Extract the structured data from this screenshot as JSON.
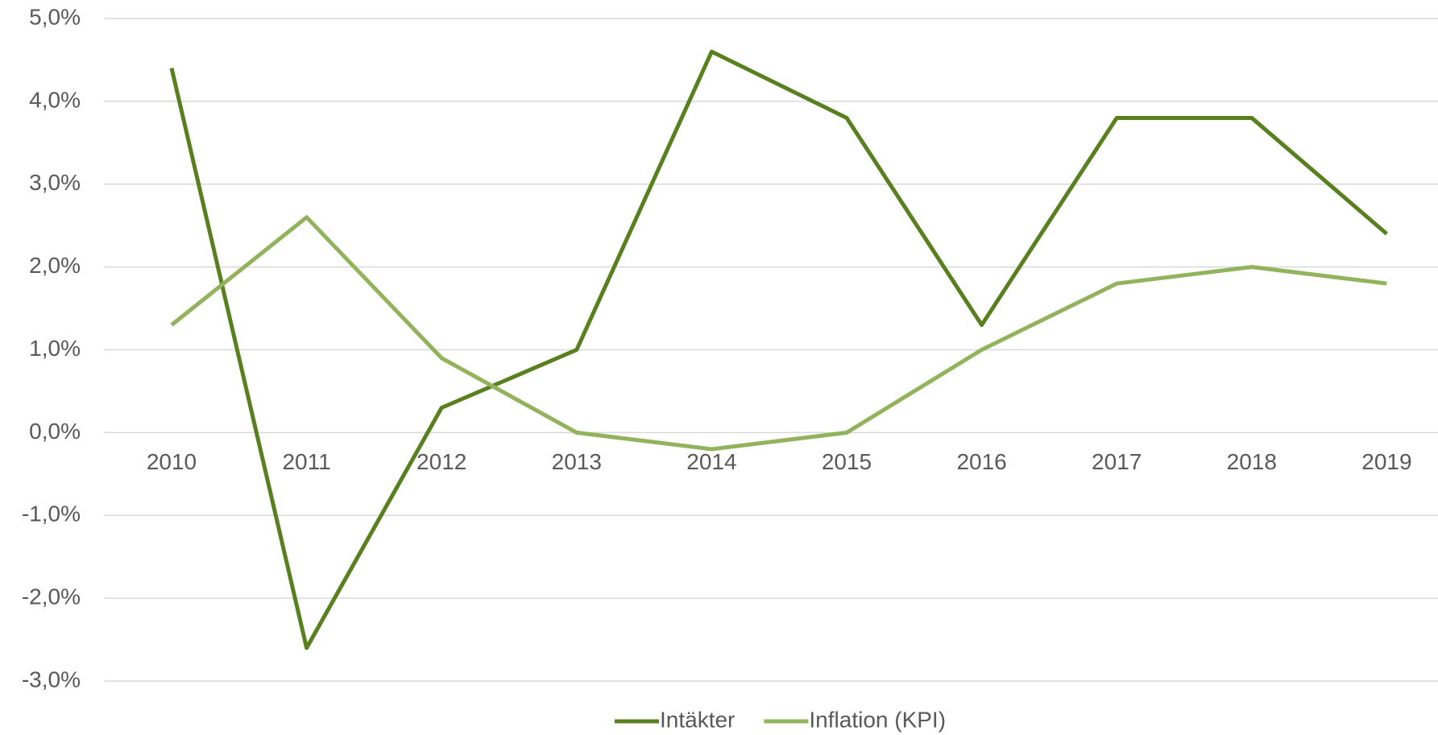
{
  "chart_data": {
    "type": "line",
    "categories": [
      "2010",
      "2011",
      "2012",
      "2013",
      "2014",
      "2015",
      "2016",
      "2017",
      "2018",
      "2019"
    ],
    "series": [
      {
        "name": "Intäkter",
        "color": "#58801f",
        "values": [
          4.4,
          -2.6,
          0.3,
          1.0,
          4.6,
          3.8,
          1.3,
          3.8,
          3.8,
          2.4
        ]
      },
      {
        "name": "Inflation (KPI)",
        "color": "#91b35c",
        "values": [
          1.3,
          2.6,
          0.9,
          0.0,
          -0.2,
          0.0,
          1.0,
          1.8,
          2.0,
          1.8
        ]
      }
    ],
    "ylim": [
      -3,
      5
    ],
    "yticks": [
      {
        "value": 5,
        "label": "5,0%"
      },
      {
        "value": 4,
        "label": "4,0%"
      },
      {
        "value": 3,
        "label": "3,0%"
      },
      {
        "value": 2,
        "label": "2,0%"
      },
      {
        "value": 1,
        "label": "1,0%"
      },
      {
        "value": 0,
        "label": "0,0%"
      },
      {
        "value": -1,
        "label": "-1,0%"
      },
      {
        "value": -2,
        "label": "-2,0%"
      },
      {
        "value": -3,
        "label": "-3,0%"
      }
    ],
    "grid": true,
    "legend": "bottom"
  }
}
